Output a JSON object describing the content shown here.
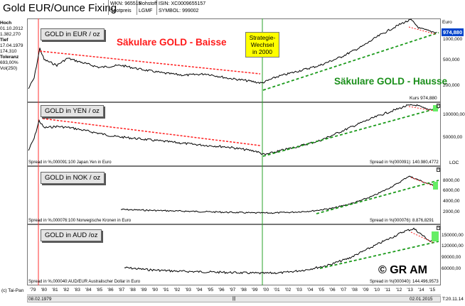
{
  "header": {
    "title": "Gold EUR/Ounce Fixing",
    "wkn": "WKN: 965515",
    "type": "Rohstoff",
    "isin": "ISIN: XC0009655157",
    "spot": "Spotpreis",
    "source": "LGMF",
    "symbol": "SYMBOL: 999002"
  },
  "stats": {
    "hoch_label": "Hoch",
    "hoch_date": "01.10.2012",
    "hoch_value": "1.382,270",
    "tief_label": "Tief",
    "tief_date": "17.04.1979",
    "tief_value": "174,310",
    "tol_label": "Toleranz",
    "tol_value": "693,00%",
    "vol_label": "Vol(250)"
  },
  "right_axis": {
    "currency": "Euro",
    "price": "974,880",
    "ticks_panel1": [
      "1000,000",
      "500,000",
      "200,000"
    ],
    "kurs": "Kurs 974,880",
    "ticks_panel2": [
      "100000,00",
      "50000,00"
    ],
    "log": "LOC",
    "ticks_panel3": [
      "8000,00",
      "6000,00",
      "4000,00",
      "2000,00"
    ],
    "ticks_panel4": [
      "150000,00",
      "120000,00",
      "90000,00",
      "60000,00"
    ]
  },
  "panels": {
    "eur": {
      "label": "GOLD in EUR / oz"
    },
    "yen": {
      "label": "GOLD in YEN / oz",
      "spread_left": "Spread in %,000091:100 Japan.Yen in Euro",
      "spread_right": "Spread in %(000091): 140.980,4772"
    },
    "nok": {
      "label": "GOLD in NOK / oz",
      "spread_left": "Spread in %,000076:100 Norwegische Kronen in Euro",
      "spread_right": "Spread in %(000076): 8.876,8291"
    },
    "aud": {
      "label": "GOLD in AUD /oz",
      "spread_left": "Spread in %,000040:AUD/EUR  Australischer Dollar in Euro",
      "spread_right": "Spread in %(000040): 144.496,9573"
    }
  },
  "annotations": {
    "baisse": "Säkulare GOLD - Baisse",
    "hausse": "Säkulare GOLD - Hausse",
    "strategy": [
      "Strategie-",
      "Wechsel",
      "in 2000"
    ],
    "copyright": "© GR AM"
  },
  "x_axis": {
    "labels": [
      "'79",
      "'80",
      "'81",
      "'82",
      "'83",
      "'84",
      "'85",
      "'86",
      "'87",
      "'88",
      "'89",
      "'90",
      "'91",
      "'92",
      "'93",
      "'94",
      "'95",
      "'96",
      "'97",
      "'98",
      "'99",
      "'00",
      "'01",
      "'02",
      "'03",
      "'04",
      "'05",
      "'06",
      "'07",
      "'08",
      "'09",
      "'10",
      "'11",
      "'12",
      "'13",
      "'14",
      "'15"
    ]
  },
  "footer": {
    "vendor": "(c) Tai-Pan",
    "start_date": "08.02.1979",
    "end_date": "02.01.2015",
    "time": "T:20.11.14"
  },
  "colors": {
    "baisse": "#ff1a1a",
    "hausse": "#1a8f1a",
    "strategy_box": "#ffff00",
    "price_badge": "#0044cc"
  }
}
